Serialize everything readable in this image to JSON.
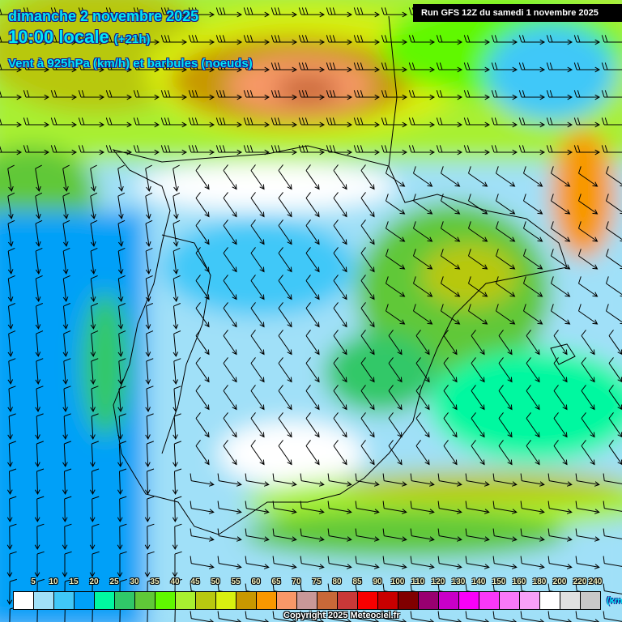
{
  "header": {
    "date": "dimanche 2 novembre 2025",
    "time": "10:00 locale",
    "lead": "(+21h)",
    "field": "Vent à 925hPa (km/h) et barbules (noeuds)",
    "run": "Run GFS 12Z du samedi 1 novembre 2025"
  },
  "legend": {
    "labels": [
      "5",
      "10",
      "15",
      "20",
      "25",
      "30",
      "35",
      "40",
      "45",
      "50",
      "55",
      "60",
      "65",
      "70",
      "75",
      "80",
      "85",
      "90",
      "100",
      "110",
      "120",
      "130",
      "140",
      "150",
      "160",
      "180",
      "200",
      "220",
      "240"
    ],
    "colors": [
      "#ffffff",
      "#a0e0f8",
      "#40c8f8",
      "#00a0f8",
      "#00f8a0",
      "#30c868",
      "#60c838",
      "#60f800",
      "#a8f030",
      "#b8c810",
      "#d8f010",
      "#c89800",
      "#f89800",
      "#f89868",
      "#c89898",
      "#c86838",
      "#c83838",
      "#f80000",
      "#c80000",
      "#800000",
      "#980070",
      "#c800c8",
      "#f800f8",
      "#f838f8",
      "#f878f8",
      "#f8a0f8",
      "#ffffff",
      "#e0e0e0",
      "#c8c8c8"
    ],
    "unit": "(km/h)"
  },
  "footer": {
    "copyright": "Copyright 2025 Meteociel.fr"
  }
}
